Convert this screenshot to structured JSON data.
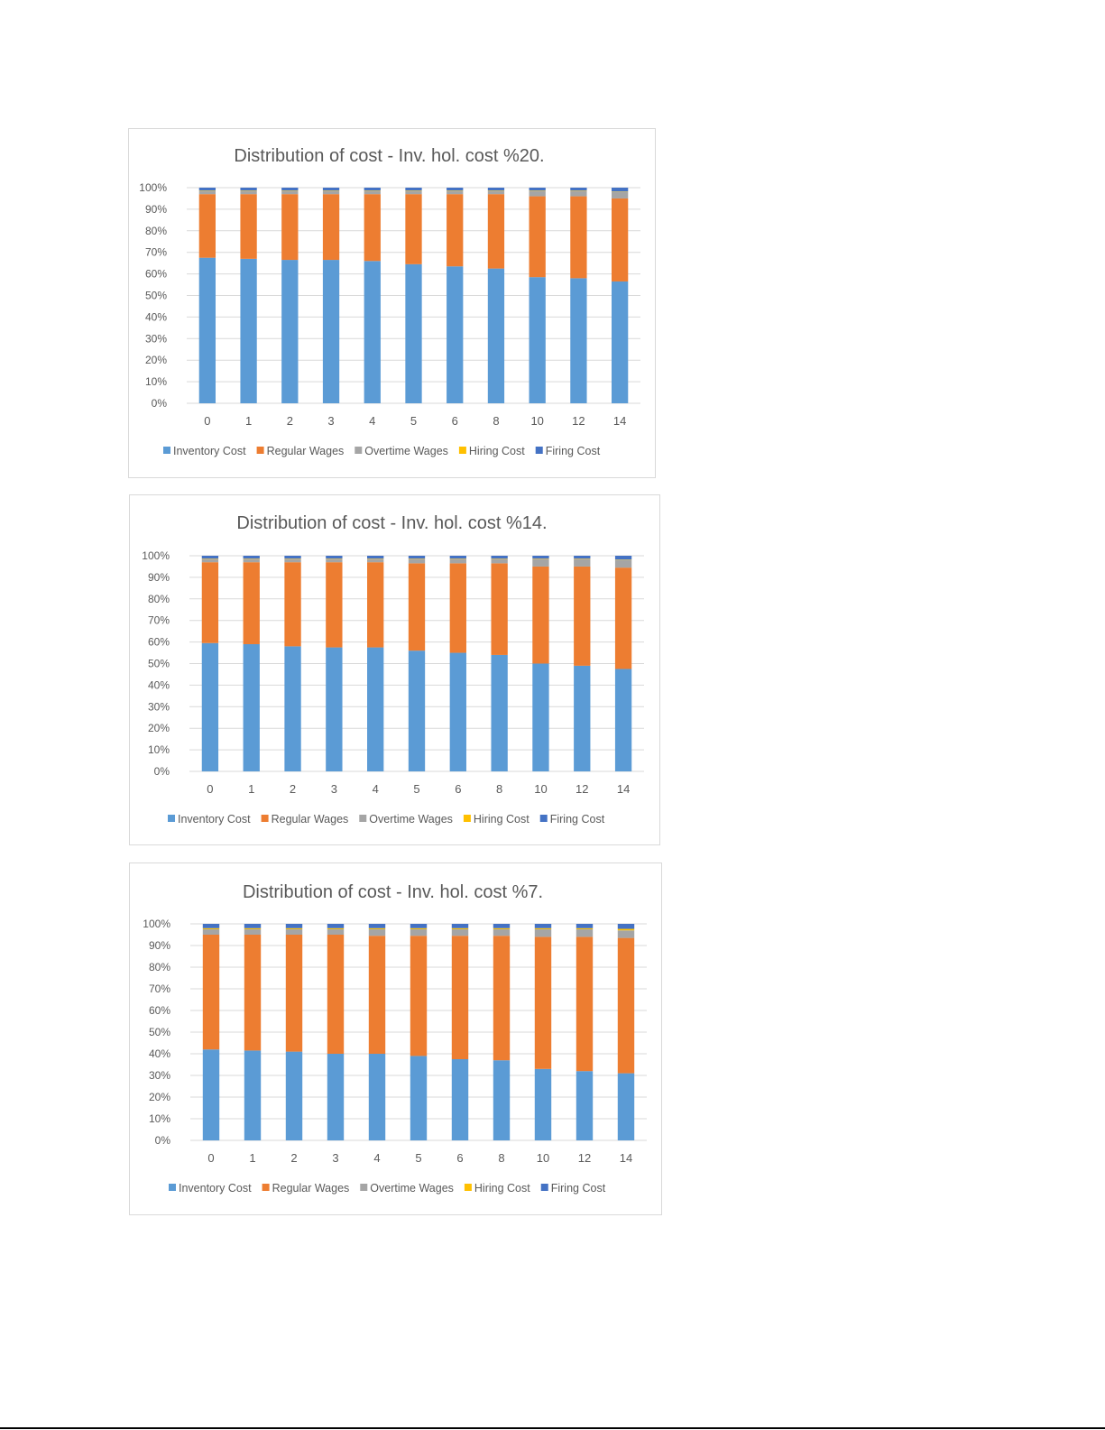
{
  "colors": {
    "inventory": "#5b9bd5",
    "regular": "#ed7d31",
    "overtime": "#a5a5a5",
    "hiring": "#ffc000",
    "firing": "#4472c4",
    "grid": "#d9d9d9",
    "text": "#595959"
  },
  "chart_data": [
    {
      "type": "bar",
      "stacked": "percent",
      "title": "Distribution of cost - Inv. hol. cost %20.",
      "categories": [
        "0",
        "1",
        "2",
        "3",
        "4",
        "5",
        "6",
        "8",
        "10",
        "12",
        "14"
      ],
      "yticks": [
        "0%",
        "10%",
        "20%",
        "30%",
        "40%",
        "50%",
        "60%",
        "70%",
        "80%",
        "90%",
        "100%"
      ],
      "ylim": [
        0,
        100
      ],
      "grid": true,
      "legend": "bottom",
      "series": [
        {
          "name": "Inventory Cost",
          "values": [
            67.5,
            67,
            66.5,
            66.5,
            66,
            64.5,
            63.5,
            62.5,
            58.5,
            58,
            56.5
          ]
        },
        {
          "name": "Regular Wages",
          "values": [
            29.5,
            30,
            30.5,
            30.5,
            31,
            32.5,
            33.5,
            34.5,
            37.5,
            38,
            38.5
          ]
        },
        {
          "name": "Overtime Wages",
          "values": [
            1.5,
            1.5,
            1.5,
            1.5,
            1.5,
            1.5,
            1.5,
            1.5,
            2.5,
            2.5,
            3
          ]
        },
        {
          "name": "Hiring Cost",
          "values": [
            0.2,
            0.2,
            0.2,
            0.2,
            0.2,
            0.2,
            0.2,
            0.2,
            0.2,
            0.2,
            0.2
          ]
        },
        {
          "name": "Firing Cost",
          "values": [
            1.3,
            1.3,
            1.3,
            1.3,
            1.3,
            1.3,
            1.3,
            1.3,
            1.3,
            1.3,
            1.8
          ]
        }
      ]
    },
    {
      "type": "bar",
      "stacked": "percent",
      "title": "Distribution of cost - Inv. hol. cost %14.",
      "categories": [
        "0",
        "1",
        "2",
        "3",
        "4",
        "5",
        "6",
        "8",
        "10",
        "12",
        "14"
      ],
      "yticks": [
        "0%",
        "10%",
        "20%",
        "30%",
        "40%",
        "50%",
        "60%",
        "70%",
        "80%",
        "90%",
        "100%"
      ],
      "ylim": [
        0,
        100
      ],
      "grid": true,
      "legend": "bottom",
      "series": [
        {
          "name": "Inventory Cost",
          "values": [
            59.5,
            59,
            58,
            57.5,
            57.5,
            56,
            55,
            54,
            50,
            49,
            47.5
          ]
        },
        {
          "name": "Regular Wages",
          "values": [
            37.5,
            38,
            39,
            39.5,
            39.5,
            40.5,
            41.5,
            42.5,
            45,
            46,
            47
          ]
        },
        {
          "name": "Overtime Wages",
          "values": [
            1.5,
            1.5,
            1.5,
            1.5,
            1.5,
            2,
            2,
            2,
            3.5,
            3.5,
            3.5
          ]
        },
        {
          "name": "Hiring Cost",
          "values": [
            0.2,
            0.2,
            0.2,
            0.2,
            0.2,
            0.2,
            0.2,
            0.2,
            0.2,
            0.2,
            0.2
          ]
        },
        {
          "name": "Firing Cost",
          "values": [
            1.3,
            1.3,
            1.3,
            1.3,
            1.3,
            1.3,
            1.3,
            1.3,
            1.3,
            1.3,
            1.8
          ]
        }
      ]
    },
    {
      "type": "bar",
      "stacked": "percent",
      "title": "Distribution of cost - Inv. hol. cost %7.",
      "categories": [
        "0",
        "1",
        "2",
        "3",
        "4",
        "5",
        "6",
        "8",
        "10",
        "12",
        "14"
      ],
      "yticks": [
        "0%",
        "10%",
        "20%",
        "30%",
        "40%",
        "50%",
        "60%",
        "70%",
        "80%",
        "90%",
        "100%"
      ],
      "ylim": [
        0,
        100
      ],
      "grid": true,
      "legend": "bottom",
      "series": [
        {
          "name": "Inventory Cost",
          "values": [
            42,
            41.5,
            41,
            40,
            40,
            39,
            37.5,
            37,
            33,
            32,
            31
          ]
        },
        {
          "name": "Regular Wages",
          "values": [
            53,
            53.5,
            54,
            55,
            54.5,
            55.5,
            57,
            57.5,
            61,
            62,
            62.5
          ]
        },
        {
          "name": "Overtime Wages",
          "values": [
            2.5,
            2.5,
            2.5,
            2.5,
            3,
            3,
            3,
            3,
            3.5,
            3.5,
            3.5
          ]
        },
        {
          "name": "Hiring Cost",
          "values": [
            0.5,
            0.5,
            0.5,
            0.5,
            0.5,
            0.5,
            0.5,
            0.5,
            0.5,
            0.5,
            0.7
          ]
        },
        {
          "name": "Firing Cost",
          "values": [
            2,
            2,
            2,
            2,
            2,
            2,
            2,
            2,
            2,
            2,
            2.3
          ]
        }
      ]
    }
  ]
}
